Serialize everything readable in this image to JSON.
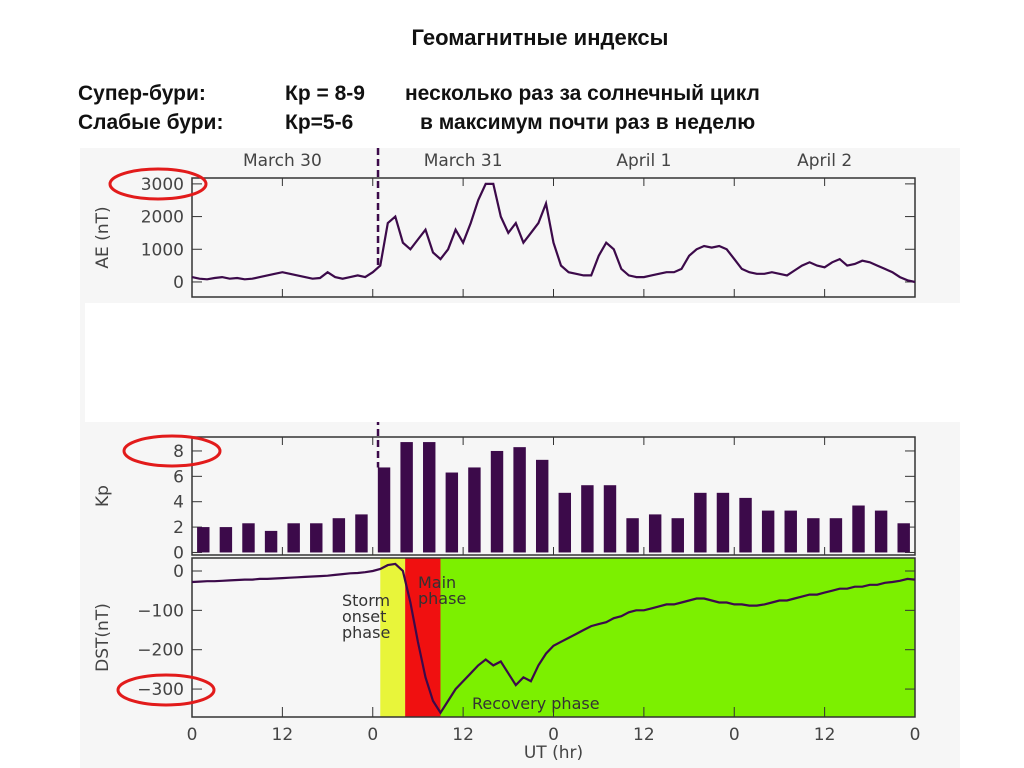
{
  "slide": {
    "title": "Геомагнитные индексы",
    "rows": [
      [
        "Супер-бури:",
        "Кр = 8-9",
        "несколько раз за солнечный цикл"
      ],
      [
        "Слабые бури:",
        "Кр=5-6",
        "в максимум почти раз в неделю"
      ]
    ]
  },
  "chart_data": [
    {
      "type": "line",
      "ylabel": "AE (nT)",
      "color": "#3c0a4a",
      "xlim": [
        0,
        96
      ],
      "ylim": [
        -460,
        3180
      ],
      "yticks": [
        0,
        1000,
        2000,
        3000
      ],
      "vline": 24.7,
      "date_labels": [
        {
          "value": 12,
          "label": "March 30"
        },
        {
          "value": 36,
          "label": "March 31"
        },
        {
          "value": 60,
          "label": "April 1"
        },
        {
          "value": 84,
          "label": "April 2"
        }
      ],
      "x": [
        0,
        1,
        2,
        3,
        4,
        5,
        6,
        7,
        8,
        9,
        10,
        11,
        12,
        13,
        14,
        15,
        16,
        17,
        18,
        19,
        20,
        21,
        22,
        23,
        24,
        25,
        26,
        27,
        28,
        29,
        30,
        31,
        32,
        33,
        34,
        35,
        36,
        37,
        38,
        39,
        40,
        41,
        42,
        43,
        44,
        45,
        46,
        47,
        48,
        49,
        50,
        51,
        52,
        53,
        54,
        55,
        56,
        57,
        58,
        59,
        60,
        61,
        62,
        63,
        64,
        65,
        66,
        67,
        68,
        69,
        70,
        71,
        72,
        73,
        74,
        75,
        76,
        77,
        78,
        79,
        80,
        81,
        82,
        83,
        84,
        85,
        86,
        87,
        88,
        89,
        90,
        91,
        92,
        93,
        94,
        95,
        96
      ],
      "values": [
        150,
        100,
        80,
        120,
        150,
        100,
        120,
        80,
        100,
        150,
        200,
        250,
        300,
        250,
        200,
        150,
        100,
        120,
        300,
        150,
        100,
        150,
        200,
        150,
        300,
        500,
        1800,
        2000,
        1200,
        1000,
        1300,
        1600,
        900,
        700,
        1000,
        1600,
        1200,
        1800,
        2500,
        3000,
        3000,
        2000,
        1500,
        1800,
        1200,
        1500,
        1800,
        2400,
        1200,
        500,
        300,
        250,
        200,
        200,
        800,
        1200,
        1000,
        400,
        200,
        150,
        150,
        200,
        250,
        300,
        300,
        400,
        800,
        1000,
        1100,
        1050,
        1100,
        1000,
        700,
        400,
        300,
        250,
        250,
        300,
        250,
        200,
        350,
        500,
        600,
        500,
        450,
        600,
        700,
        500,
        550,
        650,
        600,
        500,
        400,
        300,
        150,
        50,
        0
      ]
    },
    {
      "type": "bar",
      "ylabel": "Kp",
      "color": "#3c0a4a",
      "xlim": [
        0,
        96
      ],
      "ylim": [
        -0.2,
        9.1
      ],
      "yticks": [
        0,
        2,
        4,
        6,
        8
      ],
      "vline": 24.7,
      "x": [
        1.5,
        4.5,
        7.5,
        10.5,
        13.5,
        16.5,
        19.5,
        22.5,
        25.5,
        28.5,
        31.5,
        34.5,
        37.5,
        40.5,
        43.5,
        46.5,
        49.5,
        52.5,
        55.5,
        58.5,
        61.5,
        64.5,
        67.5,
        70.5,
        73.5,
        76.5,
        79.5,
        82.5,
        85.5,
        88.5,
        91.5,
        94.5
      ],
      "values": [
        2,
        2,
        2.3,
        1.7,
        2.3,
        2.3,
        2.7,
        3,
        6.7,
        8.7,
        8.7,
        6.3,
        6.7,
        8,
        8.3,
        7.3,
        4.7,
        5.3,
        5.3,
        2.7,
        3,
        2.7,
        4.7,
        4.7,
        4.3,
        3.3,
        3.3,
        2.7,
        2.7,
        3.7,
        3.3,
        2.3
      ]
    },
    {
      "type": "line",
      "ylabel": "DST(nT)",
      "xlabel": "UT (hr)",
      "color": "#3c0a4a",
      "xlim": [
        0,
        96
      ],
      "ylim": [
        -371,
        33
      ],
      "yticks": [
        0,
        {
          "value": -100,
          "label": "−100"
        },
        {
          "value": -200,
          "label": "−200"
        },
        {
          "value": -300,
          "label": "−300"
        }
      ],
      "xticks": [
        {
          "value": 0,
          "label": "0"
        },
        {
          "value": 12,
          "label": "12"
        },
        {
          "value": 24,
          "label": "0"
        },
        {
          "value": 36,
          "label": "12"
        },
        {
          "value": 48,
          "label": "0"
        },
        {
          "value": 60,
          "label": "12"
        },
        {
          "value": 72,
          "label": "0"
        },
        {
          "value": 84,
          "label": "12"
        },
        {
          "value": 96,
          "label": "0"
        }
      ],
      "phases": [
        {
          "lines": [
            "Storm",
            "onset",
            "phase"
          ],
          "start": 25,
          "end": 28.3,
          "color": "#e8f53a"
        },
        {
          "lines": [
            "Main",
            "phase"
          ],
          "start": 28.3,
          "end": 33,
          "color": "#f01010"
        },
        {
          "lines": [
            "Recovery phase"
          ],
          "start": 33,
          "end": 96,
          "color": "#7cf000"
        }
      ],
      "x": [
        0,
        1,
        2,
        3,
        4,
        5,
        6,
        7,
        8,
        9,
        10,
        11,
        12,
        13,
        14,
        15,
        16,
        17,
        18,
        19,
        20,
        21,
        22,
        23,
        24,
        25,
        26,
        27,
        28,
        29,
        30,
        31,
        32,
        33,
        34,
        35,
        36,
        37,
        38,
        39,
        40,
        41,
        42,
        43,
        44,
        45,
        46,
        47,
        48,
        49,
        50,
        51,
        52,
        53,
        54,
        55,
        56,
        57,
        58,
        59,
        60,
        61,
        62,
        63,
        64,
        65,
        66,
        67,
        68,
        69,
        70,
        71,
        72,
        73,
        74,
        75,
        76,
        77,
        78,
        79,
        80,
        81,
        82,
        83,
        84,
        85,
        86,
        87,
        88,
        89,
        90,
        91,
        92,
        93,
        94,
        95,
        96
      ],
      "values": [
        -28,
        -27,
        -26,
        -26,
        -25,
        -24,
        -23,
        -22,
        -22,
        -20,
        -20,
        -19,
        -18,
        -17,
        -16,
        -15,
        -14,
        -13,
        -12,
        -10,
        -8,
        -6,
        -5,
        -3,
        0,
        5,
        15,
        18,
        0,
        -80,
        -180,
        -270,
        -330,
        -360,
        -330,
        -300,
        -280,
        -260,
        -240,
        -225,
        -240,
        -230,
        -260,
        -290,
        -270,
        -280,
        -240,
        -210,
        -190,
        -180,
        -170,
        -160,
        -150,
        -140,
        -135,
        -130,
        -120,
        -115,
        -105,
        -100,
        -100,
        -95,
        -90,
        -85,
        -85,
        -80,
        -75,
        -70,
        -70,
        -75,
        -80,
        -80,
        -85,
        -85,
        -88,
        -88,
        -85,
        -80,
        -75,
        -75,
        -70,
        -65,
        -60,
        -60,
        -55,
        -50,
        -45,
        -45,
        -40,
        -40,
        -35,
        -35,
        -30,
        -28,
        -25,
        -20,
        -22
      ]
    }
  ]
}
